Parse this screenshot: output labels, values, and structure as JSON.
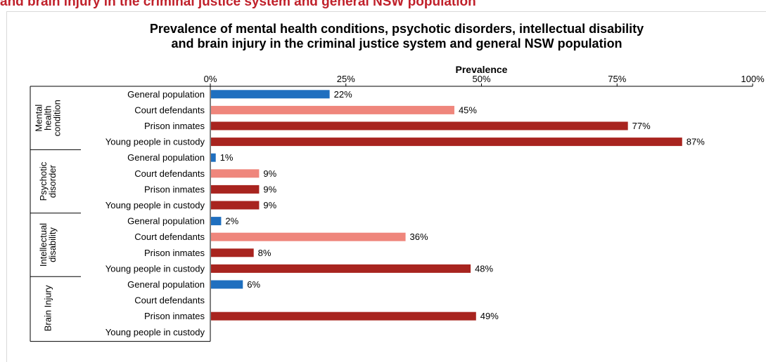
{
  "page_heading": "and brain injury in the criminal justice system and general NSW population",
  "colors": {
    "General population": "#1f6fbf",
    "Court defendants": "#ef867c",
    "Prison inmates": "#a8241f",
    "Young people in custody": "#a8241f",
    "heading": "#c0212b",
    "axis": "#000000",
    "frame": "#d9d9d9"
  },
  "chart_data": {
    "type": "bar",
    "orientation": "horizontal",
    "title_lines": [
      "Prevalence of mental health conditions, psychotic disorders, intellectual disability",
      "and brain injury in the criminal justice system and general NSW population"
    ],
    "xlabel": "Prevalence",
    "xaxis_position": "top",
    "xlim": [
      0,
      100
    ],
    "x_ticks": [
      0,
      25,
      50,
      75,
      100
    ],
    "x_tick_labels": [
      "0%",
      "25%",
      "50%",
      "75%",
      "100%"
    ],
    "grid": false,
    "legend": "none",
    "groups": [
      {
        "name_lines": [
          "Mental",
          "health",
          "condition"
        ],
        "bars": [
          {
            "category": "General population",
            "value": 22,
            "label": "22%"
          },
          {
            "category": "Court defendants",
            "value": 45,
            "label": "45%"
          },
          {
            "category": "Prison inmates",
            "value": 77,
            "label": "77%"
          },
          {
            "category": "Young people in custody",
            "value": 87,
            "label": "87%"
          }
        ]
      },
      {
        "name_lines": [
          "Psychotic",
          "disorder"
        ],
        "bars": [
          {
            "category": "General population",
            "value": 1,
            "label": "1%"
          },
          {
            "category": "Court defendants",
            "value": 9,
            "label": "9%"
          },
          {
            "category": "Prison inmates",
            "value": 9,
            "label": "9%"
          },
          {
            "category": "Young people in custody",
            "value": 9,
            "label": "9%"
          }
        ]
      },
      {
        "name_lines": [
          "Intellectual",
          "disability"
        ],
        "bars": [
          {
            "category": "General population",
            "value": 2,
            "label": "2%"
          },
          {
            "category": "Court defendants",
            "value": 36,
            "label": "36%"
          },
          {
            "category": "Prison inmates",
            "value": 8,
            "label": "8%"
          },
          {
            "category": "Young people in custody",
            "value": 48,
            "label": "48%"
          }
        ]
      },
      {
        "name_lines": [
          "Brain Injury"
        ],
        "bars": [
          {
            "category": "General population",
            "value": 6,
            "label": "6%"
          },
          {
            "category": "Court defendants",
            "value": null,
            "label": ""
          },
          {
            "category": "Prison inmates",
            "value": 49,
            "label": "49%"
          },
          {
            "category": "Young people in custody",
            "value": null,
            "label": ""
          }
        ]
      }
    ]
  }
}
